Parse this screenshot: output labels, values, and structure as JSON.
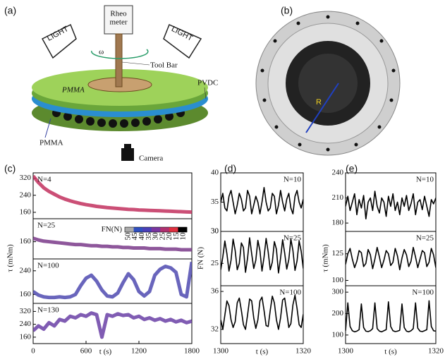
{
  "panel_labels": [
    "(a)",
    "(b)",
    "(c)",
    "(d)",
    "(e)"
  ],
  "diagram": {
    "rheometer": [
      "Rheo",
      "meter"
    ],
    "lights": [
      "LIGHT",
      "LIGHT"
    ],
    "omega": "ω",
    "tool_bar": "Tool Bar",
    "pvdc": "PVDC",
    "pmma_top": "PMMA",
    "pmma_bottom": "PMMA",
    "camera": "Camera"
  },
  "photo": {
    "radius_label": "R"
  },
  "chart_data": [
    {
      "type": "line",
      "annotation": "N=4",
      "ylabel": "τ (mNm)",
      "xlim": [
        0,
        1800
      ],
      "ylim": [
        130,
        345
      ],
      "yticks": [
        160,
        240,
        320
      ],
      "x": [
        0,
        60,
        120,
        180,
        240,
        300,
        360,
        420,
        480,
        540,
        600,
        660,
        720,
        780,
        840,
        900,
        960,
        1020,
        1080,
        1140,
        1200,
        1260,
        1320,
        1380,
        1440,
        1500,
        1560,
        1620,
        1680,
        1740,
        1800
      ],
      "series": [
        {
          "color": "#c2305e",
          "values": [
            330,
            300,
            275,
            258,
            245,
            232,
            222,
            214,
            207,
            201,
            196,
            192,
            188,
            185,
            182,
            180,
            178,
            176,
            174,
            173,
            171,
            170,
            169,
            168,
            167,
            166,
            165,
            164,
            163,
            162,
            161
          ]
        }
      ]
    },
    {
      "type": "line",
      "annotation": "N=25",
      "xlim": [
        0,
        1800
      ],
      "ylim": [
        130,
        200
      ],
      "yticks": [
        160
      ],
      "colorbar": {
        "label": "FN(N)",
        "ticks": [
          50,
          45,
          40,
          35,
          30,
          25,
          20,
          15,
          10
        ],
        "colors": [
          "#aaaaaa",
          "#2f4fc0",
          "#4a3fb8",
          "#7a35a0",
          "#b03070",
          "#e03040",
          "#000000"
        ]
      },
      "x": [
        0,
        60,
        120,
        180,
        240,
        300,
        360,
        420,
        480,
        540,
        600,
        660,
        720,
        780,
        840,
        900,
        960,
        1020,
        1080,
        1140,
        1200,
        1260,
        1320,
        1380,
        1440,
        1500,
        1560,
        1620,
        1680,
        1740,
        1800
      ],
      "series": [
        {
          "color": "#7a3a8a",
          "values": [
            166,
            163,
            161,
            160,
            159,
            158,
            157,
            156,
            155,
            155,
            154,
            153,
            153,
            152,
            152,
            151,
            151,
            150,
            150,
            149,
            149,
            149,
            148,
            148,
            148,
            147,
            147,
            147,
            146,
            146,
            146
          ]
        }
      ]
    },
    {
      "type": "line",
      "annotation": "N=100",
      "xlim": [
        0,
        1800
      ],
      "ylim": [
        130,
        280
      ],
      "yticks": [
        160,
        240
      ],
      "x": [
        0,
        60,
        120,
        180,
        240,
        300,
        360,
        420,
        480,
        540,
        600,
        660,
        720,
        780,
        840,
        900,
        960,
        1020,
        1080,
        1140,
        1200,
        1260,
        1320,
        1380,
        1440,
        1500,
        1560,
        1620,
        1680,
        1740,
        1800
      ],
      "series": [
        {
          "color": "#4f4ab0",
          "values": [
            170,
            158,
            152,
            150,
            150,
            152,
            150,
            152,
            160,
            190,
            215,
            225,
            205,
            175,
            155,
            152,
            165,
            200,
            230,
            210,
            170,
            155,
            170,
            225,
            245,
            255,
            250,
            235,
            160,
            152,
            270
          ]
        }
      ]
    },
    {
      "type": "line",
      "annotation": "N=130",
      "xlabel": "t (s)",
      "xlim": [
        0,
        1800
      ],
      "ylim": [
        120,
        370
      ],
      "yticks": [
        160,
        240,
        320
      ],
      "xticks": [
        0,
        600,
        1200,
        1800
      ],
      "x": [
        0,
        60,
        120,
        180,
        240,
        300,
        360,
        420,
        480,
        540,
        600,
        660,
        720,
        780,
        840,
        900,
        960,
        1020,
        1080,
        1140,
        1200,
        1260,
        1320,
        1380,
        1440,
        1500,
        1560,
        1620,
        1680,
        1740,
        1800
      ],
      "series": [
        {
          "color": "#6a3fa6",
          "values": [
            200,
            230,
            210,
            250,
            230,
            270,
            260,
            290,
            280,
            300,
            290,
            310,
            300,
            160,
            300,
            290,
            305,
            295,
            300,
            280,
            290,
            270,
            280,
            265,
            275,
            260,
            270,
            255,
            265,
            250,
            260
          ]
        }
      ]
    },
    {
      "type": "line",
      "annotation": "N=10",
      "xlim": [
        1300,
        1320
      ],
      "ylim": [
        30,
        40
      ],
      "yticks": [
        30,
        35,
        40
      ],
      "x": [
        1300,
        1300.5,
        1301,
        1301.5,
        1302,
        1302.5,
        1303,
        1303.5,
        1304,
        1304.5,
        1305,
        1305.5,
        1306,
        1306.5,
        1307,
        1307.5,
        1308,
        1308.5,
        1309,
        1309.5,
        1310,
        1310.5,
        1311,
        1311.5,
        1312,
        1312.5,
        1313,
        1313.5,
        1314,
        1314.5,
        1315,
        1315.5,
        1316,
        1316.5,
        1317,
        1317.5,
        1318,
        1318.5,
        1319,
        1319.5,
        1320
      ],
      "series": [
        {
          "color": "#000000",
          "values": [
            35,
            36.5,
            34,
            33.5,
            36,
            37,
            35,
            33,
            34.5,
            36.5,
            35.5,
            33.5,
            34,
            37,
            36,
            33,
            34.5,
            36,
            35,
            33,
            35,
            37.5,
            35,
            33.5,
            34,
            36.5,
            36,
            33,
            34.5,
            37,
            35,
            33.5,
            35.5,
            36.5,
            34,
            33,
            36,
            37,
            35,
            34,
            35.5
          ]
        }
      ]
    },
    {
      "type": "line",
      "annotation": "N=25",
      "ylabel": "FN (N)",
      "xlim": [
        1300,
        1320
      ],
      "ylim": [
        21.5,
        30
      ],
      "yticks": [
        25,
        30
      ],
      "x": [
        1300,
        1300.5,
        1301,
        1301.5,
        1302,
        1302.5,
        1303,
        1303.5,
        1304,
        1304.5,
        1305,
        1305.5,
        1306,
        1306.5,
        1307,
        1307.5,
        1308,
        1308.5,
        1309,
        1309.5,
        1310,
        1310.5,
        1311,
        1311.5,
        1312,
        1312.5,
        1313,
        1313.5,
        1314,
        1314.5,
        1315,
        1315.5,
        1316,
        1316.5,
        1317,
        1317.5,
        1318,
        1318.5,
        1319,
        1319.5,
        1320
      ],
      "series": [
        {
          "color": "#000000",
          "values": [
            24,
            26,
            28.5,
            26.5,
            23.8,
            25.5,
            28.8,
            27,
            24,
            25,
            28.2,
            27.5,
            23.6,
            25.8,
            29,
            26.5,
            24.2,
            25.5,
            28.6,
            27,
            23.8,
            26,
            28.9,
            26.8,
            24,
            25.2,
            28.4,
            27.2,
            23.5,
            25.8,
            28.7,
            26.6,
            24.1,
            25.6,
            28.8,
            27,
            23.9,
            25.4,
            28.5,
            26.9,
            24.2
          ]
        }
      ]
    },
    {
      "type": "line",
      "annotation": "N=100",
      "xlabel": "t (s)",
      "xlim": [
        1300,
        1320
      ],
      "ylim": [
        30.5,
        36.6
      ],
      "yticks": [
        32,
        36
      ],
      "xticks": [
        1300,
        1320
      ],
      "x": [
        1300,
        1300.5,
        1301,
        1301.5,
        1302,
        1302.5,
        1303,
        1303.5,
        1304,
        1304.5,
        1305,
        1305.5,
        1306,
        1306.5,
        1307,
        1307.5,
        1308,
        1308.5,
        1309,
        1309.5,
        1310,
        1310.5,
        1311,
        1311.5,
        1312,
        1312.5,
        1313,
        1313.5,
        1314,
        1314.5,
        1315,
        1315.5,
        1316,
        1316.5,
        1317,
        1317.5,
        1318,
        1318.5,
        1319,
        1319.5,
        1320
      ],
      "series": [
        {
          "color": "#000000",
          "values": [
            33,
            32,
            33.5,
            35,
            34.5,
            33,
            32.2,
            32.8,
            34.8,
            35.3,
            34,
            32.5,
            32,
            33.5,
            35.2,
            35,
            33.2,
            32.1,
            33,
            35,
            35.4,
            34,
            32.4,
            32.3,
            34,
            35.5,
            34.8,
            33,
            32,
            33.2,
            35.1,
            35.3,
            33.8,
            32.2,
            32.6,
            34.6,
            35.6,
            34.2,
            32.5,
            32.2,
            33.6
          ]
        }
      ]
    },
    {
      "type": "line",
      "annotation": "N=10",
      "xlim": [
        1300,
        1320
      ],
      "ylim": [
        170,
        240
      ],
      "yticks": [
        180,
        210,
        240
      ],
      "x": [
        1300,
        1300.5,
        1301,
        1301.5,
        1302,
        1302.5,
        1303,
        1303.5,
        1304,
        1304.5,
        1305,
        1305.5,
        1306,
        1306.5,
        1307,
        1307.5,
        1308,
        1308.5,
        1309,
        1309.5,
        1310,
        1310.5,
        1311,
        1311.5,
        1312,
        1312.5,
        1313,
        1313.5,
        1314,
        1314.5,
        1315,
        1315.5,
        1316,
        1316.5,
        1317,
        1317.5,
        1318,
        1318.5,
        1319,
        1319.5,
        1320
      ],
      "series": [
        {
          "color": "#000000",
          "values": [
            200,
            212,
            195,
            205,
            215,
            190,
            208,
            198,
            213,
            185,
            205,
            210,
            195,
            218,
            200,
            192,
            210,
            205,
            188,
            212,
            200,
            215,
            195,
            205,
            190,
            210,
            200,
            213,
            195,
            203,
            215,
            190,
            205,
            208,
            196,
            212,
            200,
            188,
            208,
            203,
            210
          ]
        }
      ]
    },
    {
      "type": "line",
      "annotation": "N=25",
      "ylabel": "τ (mNm)",
      "xlim": [
        1300,
        1320
      ],
      "ylim": [
        95,
        146
      ],
      "yticks": [
        100,
        125
      ],
      "x": [
        1300,
        1300.5,
        1301,
        1301.5,
        1302,
        1302.5,
        1303,
        1303.5,
        1304,
        1304.5,
        1305,
        1305.5,
        1306,
        1306.5,
        1307,
        1307.5,
        1308,
        1308.5,
        1309,
        1309.5,
        1310,
        1310.5,
        1311,
        1311.5,
        1312,
        1312.5,
        1313,
        1313.5,
        1314,
        1314.5,
        1315,
        1315.5,
        1316,
        1316.5,
        1317,
        1317.5,
        1318,
        1318.5,
        1319,
        1319.5,
        1320
      ],
      "series": [
        {
          "color": "#000000",
          "values": [
            115,
            125,
            130,
            120,
            112,
            118,
            128,
            126,
            113,
            116,
            129,
            124,
            111,
            120,
            131,
            122,
            112,
            119,
            128,
            125,
            114,
            117,
            130,
            123,
            110,
            121,
            129,
            124,
            113,
            118,
            131,
            122,
            112,
            120,
            128,
            126,
            113,
            117,
            130,
            124,
            112
          ]
        }
      ]
    },
    {
      "type": "line",
      "annotation": "N=100",
      "xlabel": "t (s)",
      "xlim": [
        1300,
        1320
      ],
      "ylim": [
        60,
        330
      ],
      "yticks": [
        100,
        200,
        300
      ],
      "xticks": [
        1300,
        1320
      ],
      "x": [
        1300,
        1300.5,
        1301,
        1301.5,
        1302,
        1302.5,
        1303,
        1303.5,
        1304,
        1304.5,
        1305,
        1305.5,
        1306,
        1306.5,
        1307,
        1307.5,
        1308,
        1308.5,
        1309,
        1309.5,
        1310,
        1310.5,
        1311,
        1311.5,
        1312,
        1312.5,
        1313,
        1313.5,
        1314,
        1314.5,
        1315,
        1315.5,
        1316,
        1316.5,
        1317,
        1317.5,
        1318,
        1318.5,
        1319,
        1319.5,
        1320
      ],
      "series": [
        {
          "color": "#000000",
          "values": [
            120,
            250,
            140,
            120,
            115,
            118,
            125,
            245,
            135,
            118,
            116,
            120,
            130,
            250,
            130,
            118,
            115,
            120,
            125,
            255,
            140,
            120,
            116,
            118,
            122,
            245,
            135,
            118,
            115,
            120,
            130,
            250,
            132,
            118,
            116,
            120,
            125,
            260,
            140,
            120,
            118
          ]
        }
      ]
    }
  ]
}
